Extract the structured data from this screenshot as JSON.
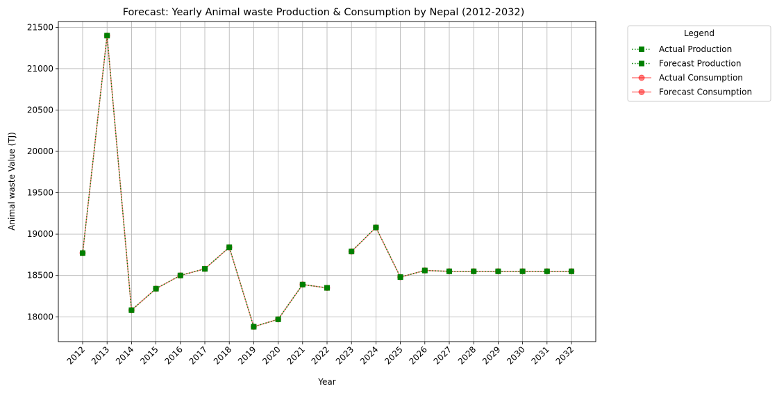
{
  "chart_data": {
    "type": "line",
    "title": "Forecast: Yearly Animal waste Production & Consumption by Nepal (2012-2032)",
    "xlabel": "Year",
    "ylabel": "Animal waste Value (TJ)",
    "x": [
      "2012",
      "2013",
      "2014",
      "2015",
      "2016",
      "2017",
      "2018",
      "2019",
      "2020",
      "2021",
      "2022",
      "2023",
      "2024",
      "2025",
      "2026",
      "2027",
      "2028",
      "2029",
      "2030",
      "2031",
      "2032"
    ],
    "yticks": [
      18000,
      18500,
      19000,
      19500,
      20000,
      20500,
      21000,
      21500
    ],
    "ylim": [
      17700,
      21570
    ],
    "grid": true,
    "legend": {
      "title": "Legend",
      "placement": "outside-top-right",
      "entries": [
        "Actual Production",
        "Forecast Production",
        "Actual Consumption",
        "Forecast Consumption"
      ]
    },
    "series": [
      {
        "name": "Actual Production",
        "color": "#008000",
        "style": "dotted",
        "marker": "square",
        "x": [
          "2012",
          "2013",
          "2014",
          "2015",
          "2016",
          "2017",
          "2018",
          "2019",
          "2020",
          "2021",
          "2022"
        ],
        "values": [
          18770,
          21400,
          18080,
          18340,
          18500,
          18580,
          18840,
          17880,
          17970,
          18390,
          18350
        ]
      },
      {
        "name": "Forecast Production",
        "color": "#008000",
        "style": "dotted",
        "marker": "square",
        "x": [
          "2023",
          "2024",
          "2025",
          "2026",
          "2027",
          "2028",
          "2029",
          "2030",
          "2031",
          "2032"
        ],
        "values": [
          18790,
          19080,
          18480,
          18560,
          18550,
          18550,
          18550,
          18550,
          18550,
          18550
        ]
      },
      {
        "name": "Actual Consumption",
        "color": "#ff0000",
        "style": "solid",
        "marker": "circle",
        "x": [
          "2012",
          "2013",
          "2014",
          "2015",
          "2016",
          "2017",
          "2018",
          "2019",
          "2020",
          "2021",
          "2022"
        ],
        "values": [
          18770,
          21400,
          18080,
          18340,
          18500,
          18580,
          18840,
          17880,
          17970,
          18390,
          18350
        ]
      },
      {
        "name": "Forecast Consumption",
        "color": "#ff0000",
        "style": "solid",
        "marker": "circle",
        "x": [
          "2023",
          "2024",
          "2025",
          "2026",
          "2027",
          "2028",
          "2029",
          "2030",
          "2031",
          "2032"
        ],
        "values": [
          18790,
          19080,
          18480,
          18560,
          18550,
          18550,
          18550,
          18550,
          18550,
          18550
        ]
      }
    ]
  }
}
